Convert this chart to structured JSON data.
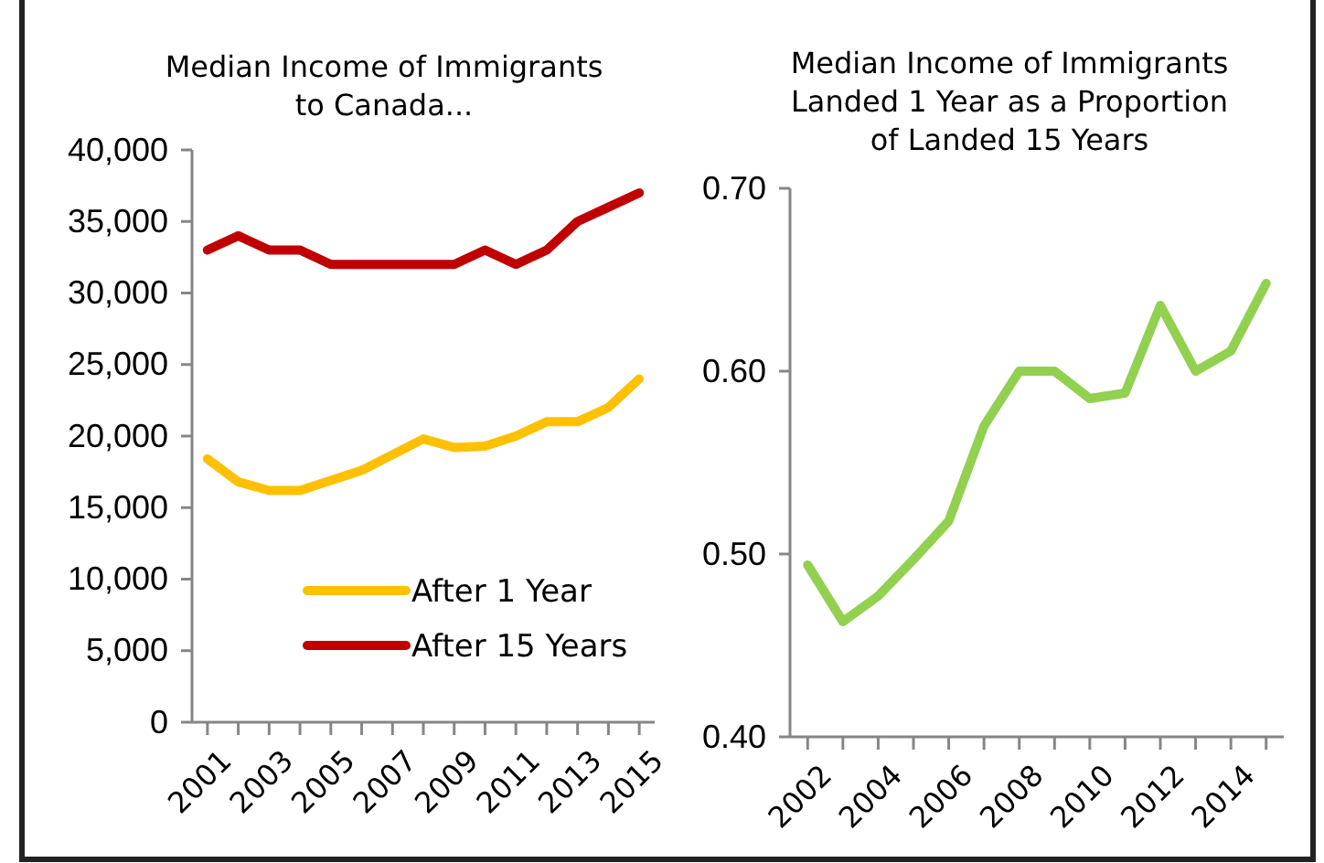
{
  "chart_data": [
    {
      "type": "line",
      "title": "Median Income of Immigrants\nto Canada...",
      "categories": [
        "2001",
        null,
        "2003",
        null,
        "2005",
        null,
        "2007",
        null,
        "2009",
        null,
        "2011",
        null,
        "2013",
        null,
        "2015"
      ],
      "ylim": [
        0,
        40000
      ],
      "yticks": [
        {
          "value": 0,
          "label": "0"
        },
        {
          "value": 5000,
          "label": "5,000"
        },
        {
          "value": 10000,
          "label": "10,000"
        },
        {
          "value": 15000,
          "label": "15,000"
        },
        {
          "value": 20000,
          "label": "20,000"
        },
        {
          "value": 25000,
          "label": "25,000"
        },
        {
          "value": 30000,
          "label": "30,000"
        },
        {
          "value": 35000,
          "label": "35,000"
        },
        {
          "value": 40000,
          "label": "40,000"
        }
      ],
      "legend": "bottom right",
      "series": [
        {
          "name": "After 1 Year",
          "color": "#ffc000",
          "values": [
            18400,
            16800,
            16200,
            16200,
            16900,
            17600,
            18700,
            19800,
            19200,
            19300,
            20000,
            21000,
            21000,
            22000,
            24000
          ]
        },
        {
          "name": "After 15 Years",
          "color": "#c00000",
          "values": [
            33000,
            34000,
            33000,
            33000,
            32000,
            32000,
            32000,
            32000,
            32000,
            33000,
            32000,
            33000,
            35000,
            36000,
            37000
          ]
        }
      ]
    },
    {
      "type": "line",
      "title": "Median Income of Immigrants\nLanded 1 Year as a Proportion\nof Landed 15 Years",
      "categories": [
        "2002",
        null,
        "2004",
        null,
        "2006",
        null,
        "2008",
        null,
        "2010",
        null,
        "2012",
        null,
        "2014",
        null
      ],
      "ylim": [
        0.4,
        0.7
      ],
      "yticks": [
        {
          "value": 0.4,
          "label": "0.40"
        },
        {
          "value": 0.5,
          "label": "0.50"
        },
        {
          "value": 0.6,
          "label": "0.60"
        },
        {
          "value": 0.7,
          "label": "0.70"
        }
      ],
      "series": [
        {
          "color": "#92d050",
          "values": [
            0.494,
            0.463,
            0.477,
            0.497,
            0.518,
            0.57,
            0.6,
            0.6,
            0.585,
            0.588,
            0.636,
            0.6,
            0.611,
            0.648
          ]
        }
      ]
    }
  ]
}
